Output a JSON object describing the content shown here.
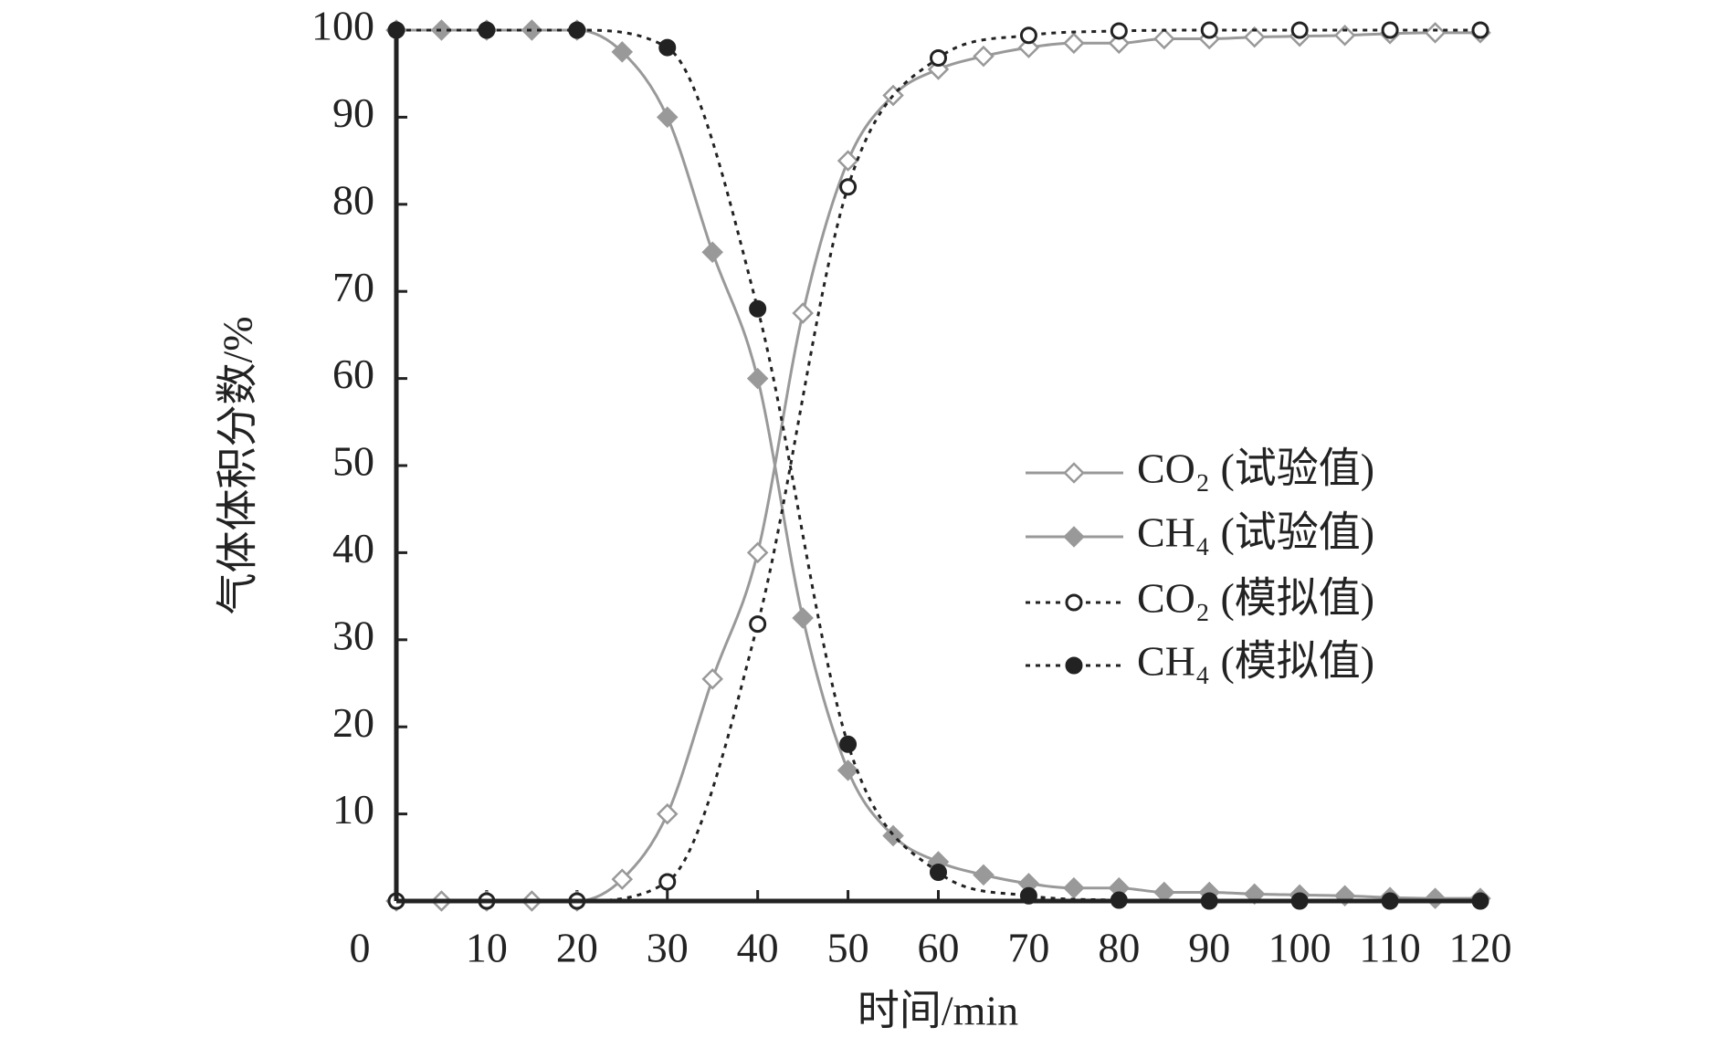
{
  "chart_data": {
    "type": "line",
    "x_label": "时间/min",
    "y_label": "气体体积分数/%",
    "xlim": [
      0,
      120
    ],
    "ylim": [
      0,
      100
    ],
    "xticks": [
      0,
      10,
      20,
      30,
      40,
      50,
      60,
      70,
      80,
      90,
      100,
      110,
      120
    ],
    "yticks": [
      10,
      20,
      30,
      40,
      50,
      60,
      70,
      80,
      90,
      100
    ],
    "legend": "right",
    "series": [
      {
        "name": "CO₂ (试验值)",
        "color": "#999999",
        "line_style": "solid",
        "marker": "diamond-open",
        "x": [
          0,
          5,
          10,
          15,
          20,
          25,
          30,
          35,
          40,
          45,
          50,
          55,
          60,
          65,
          70,
          75,
          80,
          85,
          90,
          95,
          100,
          105,
          110,
          115,
          120
        ],
        "values": [
          0,
          0,
          0,
          0,
          0,
          2.5,
          10,
          25.5,
          40,
          67.5,
          85,
          92.5,
          95.5,
          97,
          98,
          98.5,
          98.5,
          99,
          99,
          99.2,
          99.3,
          99.4,
          99.6,
          99.7,
          99.7
        ]
      },
      {
        "name": "CH₄ (试验值)",
        "color": "#999999",
        "line_style": "solid",
        "marker": "diamond-filled",
        "x": [
          0,
          5,
          10,
          15,
          20,
          25,
          30,
          35,
          40,
          45,
          50,
          55,
          60,
          65,
          70,
          75,
          80,
          85,
          90,
          95,
          100,
          105,
          110,
          115,
          120
        ],
        "values": [
          100,
          100,
          100,
          100,
          100,
          97.5,
          90,
          74.5,
          60,
          32.5,
          15,
          7.5,
          4.5,
          3,
          2,
          1.5,
          1.5,
          1,
          1,
          0.8,
          0.7,
          0.6,
          0.4,
          0.3,
          0.3
        ]
      },
      {
        "name": "CO₂ (模拟值)",
        "color": "#222222",
        "line_style": "dotted",
        "marker": "circle-open",
        "x": [
          0,
          10,
          20,
          30,
          40,
          50,
          60,
          70,
          80,
          90,
          100,
          110,
          120
        ],
        "values": [
          0,
          0,
          0,
          2.2,
          31.8,
          82,
          96.8,
          99.4,
          99.9,
          100,
          100,
          100,
          100
        ]
      },
      {
        "name": "CH₄ (模拟值)",
        "color": "#222222",
        "line_style": "dotted",
        "marker": "circle-filled",
        "x": [
          0,
          10,
          20,
          30,
          40,
          50,
          60,
          70,
          80,
          90,
          100,
          110,
          120
        ],
        "values": [
          100,
          100,
          100,
          98,
          68,
          18,
          3.3,
          0.6,
          0.1,
          0,
          0,
          0,
          0
        ]
      }
    ]
  }
}
